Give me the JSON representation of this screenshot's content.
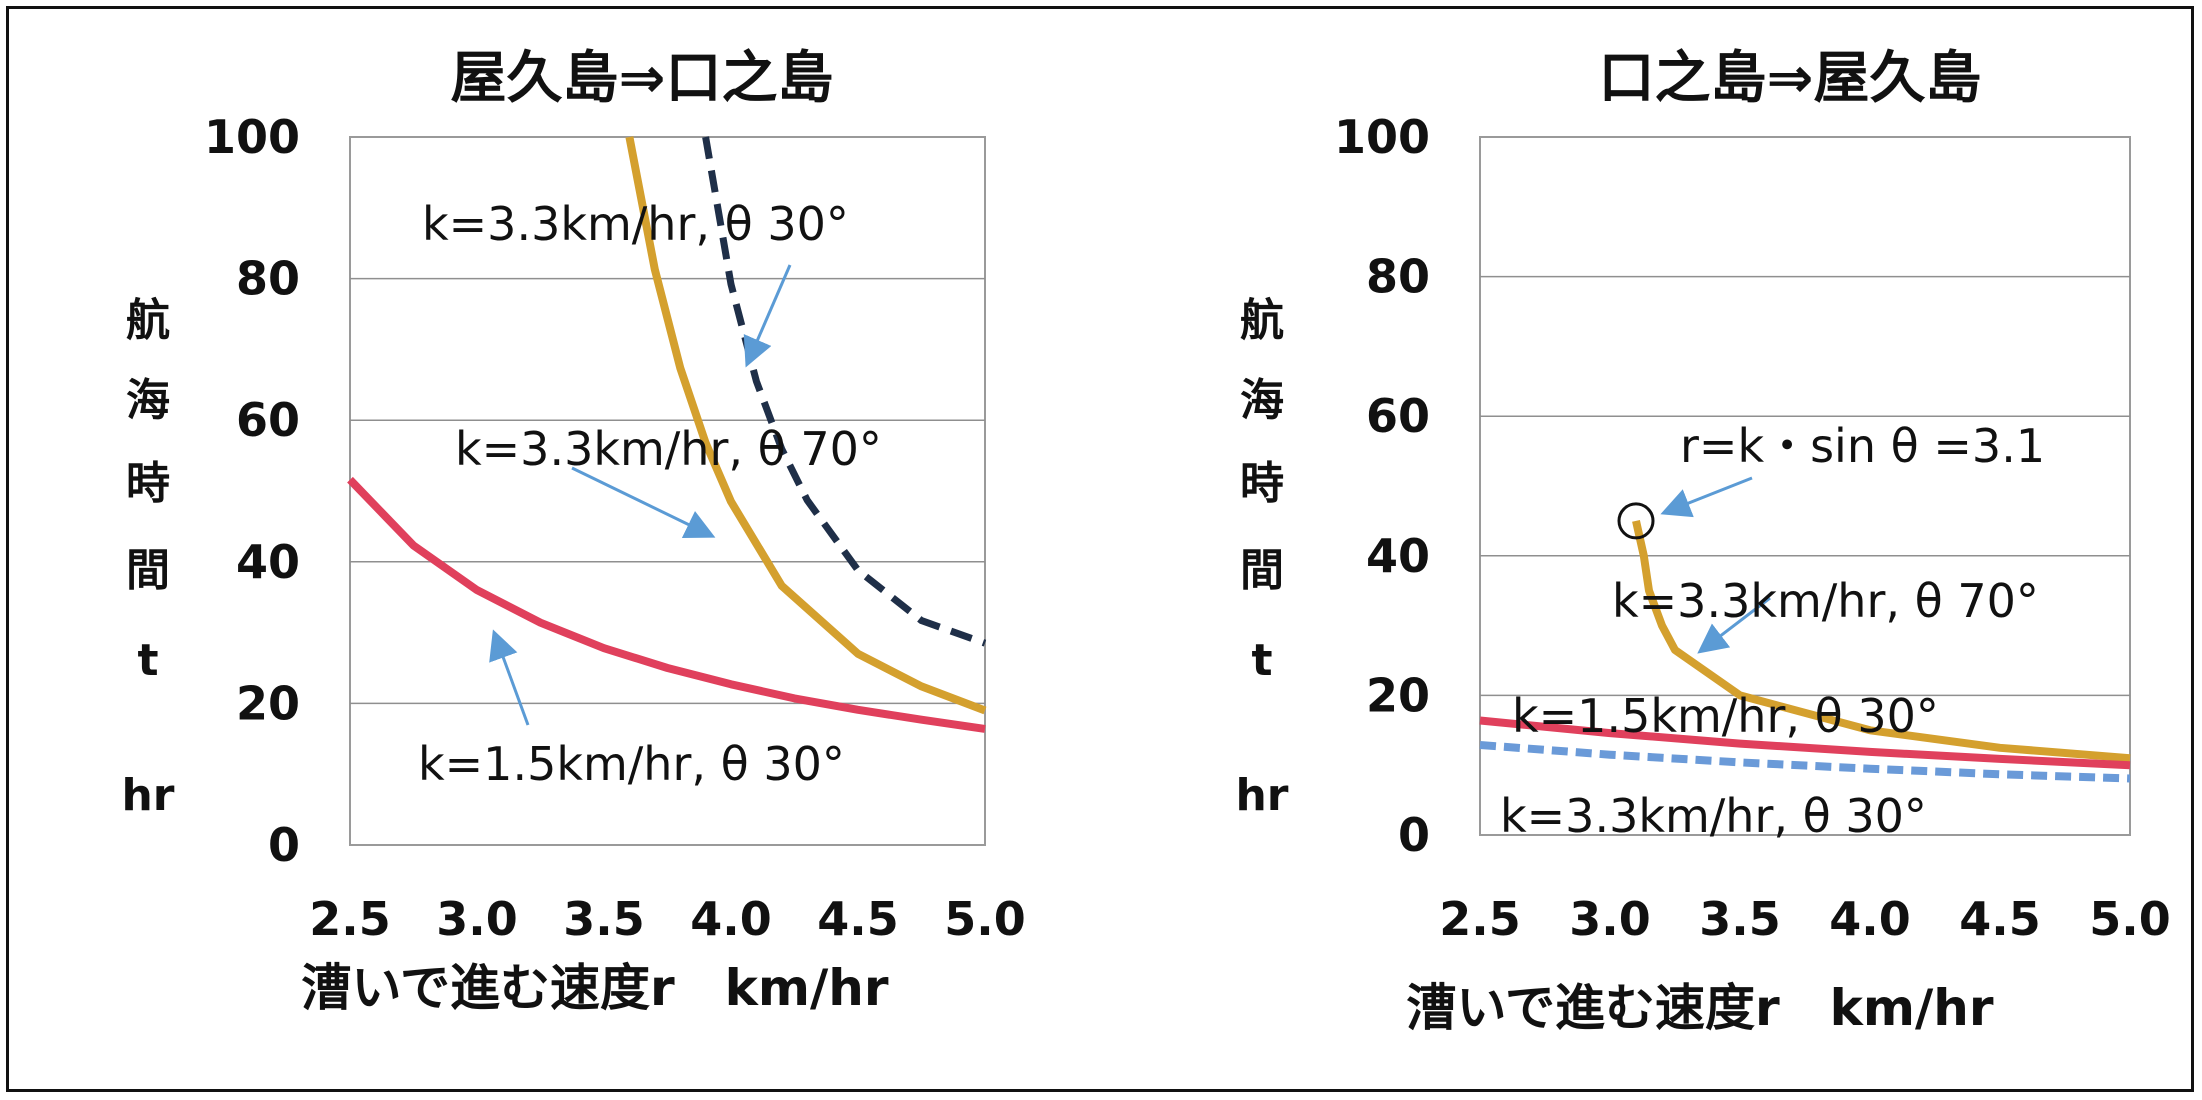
{
  "chart_data": [
    {
      "type": "line",
      "title": "屋久島⇒口之島",
      "xlabel": "漕いで進む速度r　km/hr",
      "ylabel": [
        "航",
        "海",
        "時",
        "間",
        "t",
        "hr"
      ],
      "xlim": [
        2.5,
        5.0
      ],
      "ylim": [
        0,
        100
      ],
      "xticks": [
        "2.5",
        "3.0",
        "3.5",
        "4.0",
        "4.5",
        "5.0"
      ],
      "yticks": [
        "0",
        "20",
        "40",
        "60",
        "80",
        "100"
      ],
      "grid": "horizontal",
      "series": [
        {
          "label": "k=1.5km/hr, θ 30°",
          "color": "#e0405c",
          "dash": "none",
          "x": [
            2.5,
            2.75,
            3.0,
            3.25,
            3.5,
            3.75,
            4.0,
            4.25,
            4.5,
            4.75,
            5.0
          ],
          "y": [
            51.6,
            42.3,
            36.0,
            31.4,
            27.8,
            25.0,
            22.7,
            20.7,
            19.1,
            17.7,
            16.4
          ]
        },
        {
          "label": "k=3.3km/hr, θ 70°",
          "color": "#d4a02e",
          "dash": "none",
          "x": [
            3.6,
            3.7,
            3.8,
            3.9,
            4.0,
            4.2,
            4.5,
            4.75,
            5.0
          ],
          "y": [
            100,
            81.3,
            67.4,
            56.8,
            48.5,
            36.6,
            27.0,
            22.4,
            19.0
          ]
        },
        {
          "label": "k=3.3km/hr, θ 30°",
          "color": "#1f2f48",
          "dash": "long",
          "x": [
            3.9,
            4.0,
            4.1,
            4.2,
            4.3,
            4.5,
            4.75,
            5.0
          ],
          "y": [
            100,
            79.2,
            65.5,
            55.9,
            48.7,
            38.8,
            31.7,
            28.5
          ]
        }
      ],
      "annotations": [
        {
          "text": "k=3.3km/hr, θ 30°"
        },
        {
          "text": "k=3.3km/hr, θ 70°"
        },
        {
          "text": "k=1.5km/hr, θ 30°"
        }
      ]
    },
    {
      "type": "line",
      "title": "口之島⇒屋久島",
      "xlabel": "漕いで進む速度r　km/hr",
      "ylabel": [
        "航",
        "海",
        "時",
        "間",
        "t",
        "hr"
      ],
      "xlim": [
        2.5,
        5.0
      ],
      "ylim": [
        0,
        100
      ],
      "xticks": [
        "2.5",
        "3.0",
        "3.5",
        "4.0",
        "4.5",
        "5.0"
      ],
      "yticks": [
        "0",
        "20",
        "40",
        "60",
        "80",
        "100"
      ],
      "grid": "horizontal",
      "series": [
        {
          "label": "k=3.3km/hr, θ 70°",
          "color": "#d4a02e",
          "dash": "none",
          "x": [
            3.1,
            3.13,
            3.15,
            3.2,
            3.25,
            3.5,
            4.0,
            4.5,
            5.0
          ],
          "y": [
            45.0,
            40.0,
            35.0,
            30.0,
            26.5,
            20.0,
            15.0,
            12.5,
            11.0
          ]
        },
        {
          "label": "k=1.5km/hr, θ 30°",
          "color": "#e0405c",
          "dash": "none",
          "x": [
            2.5,
            3.0,
            3.5,
            4.0,
            4.5,
            5.0
          ],
          "y": [
            16.4,
            14.6,
            13.1,
            11.9,
            10.9,
            10.0
          ]
        },
        {
          "label": "k=3.3km/hr, θ 30°",
          "color": "#6a9ad8",
          "dash": "short",
          "x": [
            2.5,
            3.0,
            3.5,
            4.0,
            4.5,
            5.0
          ],
          "y": [
            12.9,
            11.5,
            10.4,
            9.5,
            8.7,
            8.1
          ]
        }
      ],
      "marker": {
        "x": 3.1,
        "y": 45.0
      },
      "annotations": [
        {
          "text": "r=k・sin θ =3.1"
        },
        {
          "text": "k=3.3km/hr, θ 70°"
        },
        {
          "text": "k=1.5km/hr, θ 30°"
        },
        {
          "text": "k=3.3km/hr, θ 30°"
        }
      ]
    }
  ]
}
